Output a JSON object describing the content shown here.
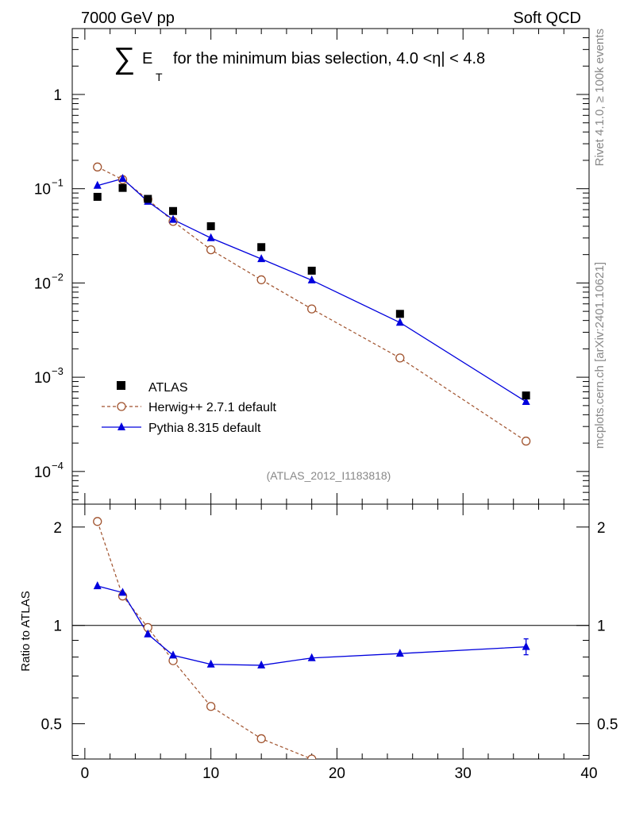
{
  "header": {
    "left": "7000 GeV pp",
    "right": "Soft QCD"
  },
  "side_text": {
    "rivet": "Rivet 4.1.0, ≥ 100k events",
    "mcplots": "mcplots.cern.ch [arXiv:2401.10621]"
  },
  "watermark": "(ATLAS_2012_I1183818)",
  "chart_data": [
    {
      "type": "scatter",
      "panel": "main",
      "title": "∑ E_T for the minimum bias selection, 4.0 <|η| < 4.8",
      "title_parts": {
        "sum": "∑",
        "e": "E",
        "t": "T",
        "rest": "for the minimum bias selection, 4.0 <η| < 4.8"
      },
      "xlabel": "",
      "ylabel": "",
      "xlim": [
        -1,
        40
      ],
      "ylim": [
        4.5e-05,
        5
      ],
      "yscale": "log",
      "y_tick_labels": [
        {
          "value": 1,
          "base": "1",
          "exp": ""
        },
        {
          "value": 0.1,
          "base": "10",
          "exp": "−1"
        },
        {
          "value": 0.01,
          "base": "10",
          "exp": "−2"
        },
        {
          "value": 0.001,
          "base": "10",
          "exp": "−3"
        },
        {
          "value": 0.0001,
          "base": "10",
          "exp": "−4"
        }
      ],
      "series": [
        {
          "name": "ATLAS",
          "label": "ATLAS",
          "style": "data",
          "color": "#000000",
          "x": [
            1,
            3,
            5,
            7,
            10,
            14,
            18,
            25,
            35
          ],
          "y": [
            0.082,
            0.102,
            0.078,
            0.058,
            0.04,
            0.024,
            0.0135,
            0.0047,
            0.00064
          ]
        },
        {
          "name": "Herwig",
          "label": "Herwig++ 2.7.1 default",
          "style": "dashed-open-circle",
          "color": "#a0522d",
          "x": [
            1,
            3,
            5,
            7,
            10,
            14,
            18,
            25,
            35
          ],
          "y": [
            0.17,
            0.125,
            0.077,
            0.045,
            0.0225,
            0.0108,
            0.0053,
            0.0016,
            0.00021
          ]
        },
        {
          "name": "Pythia",
          "label": "Pythia 8.315 default",
          "style": "solid-triangle",
          "color": "#0000dd",
          "x": [
            1,
            3,
            5,
            7,
            10,
            14,
            18,
            25,
            35
          ],
          "y": [
            0.108,
            0.128,
            0.073,
            0.047,
            0.03,
            0.018,
            0.0107,
            0.0038,
            0.00055
          ]
        }
      ],
      "legend": "bottom-left"
    },
    {
      "type": "line",
      "panel": "ratio",
      "xlabel": "",
      "ylabel": "Ratio to ATLAS",
      "xlim": [
        -1,
        40
      ],
      "ylim": [
        0.39,
        2.35
      ],
      "yscale": "log",
      "x_ticks": [
        0,
        10,
        20,
        30,
        40
      ],
      "y_ticks": [
        0.5,
        1,
        2
      ],
      "series": [
        {
          "name": "Herwig",
          "color": "#a0522d",
          "x": [
            1,
            3,
            5,
            7,
            10,
            14,
            18
          ],
          "y": [
            2.08,
            1.23,
            0.985,
            0.78,
            0.565,
            0.45,
            0.39
          ]
        },
        {
          "name": "Pythia",
          "color": "#0000dd",
          "x": [
            1,
            3,
            5,
            7,
            10,
            14,
            18,
            25,
            35
          ],
          "y": [
            1.32,
            1.26,
            0.94,
            0.81,
            0.76,
            0.755,
            0.795,
            0.82,
            0.86
          ]
        }
      ]
    }
  ]
}
